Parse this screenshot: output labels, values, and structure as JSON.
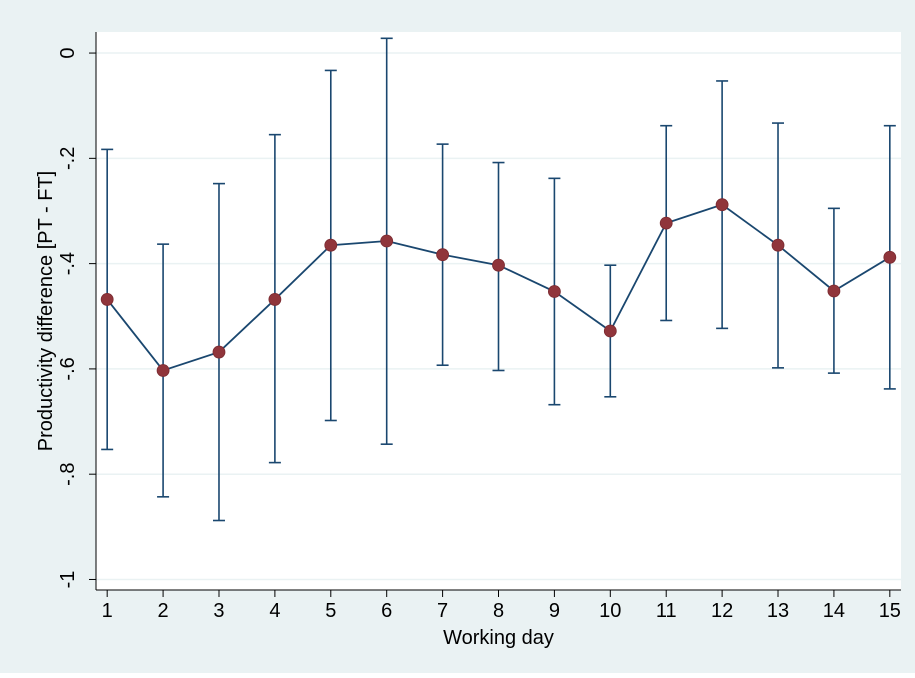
{
  "chart_data": {
    "type": "scatter",
    "xlabel": "Working day",
    "ylabel": "Productivity difference [PT - FT]",
    "xlim": [
      0.8,
      15.2
    ],
    "ylim": [
      -1.02,
      0.04
    ],
    "x_ticks": [
      1,
      2,
      3,
      4,
      5,
      6,
      7,
      8,
      9,
      10,
      11,
      12,
      13,
      14,
      15
    ],
    "y_ticks": [
      0,
      -0.2,
      -0.4,
      -0.6,
      -0.8,
      -1
    ],
    "y_tick_labels": [
      "0",
      "-.2",
      "-.4",
      "-.6",
      "-.8",
      "-1"
    ],
    "grid": true,
    "legend": "none",
    "colors": {
      "outer_background": "#eaf2f3",
      "plot_background": "#ffffff",
      "line": "#1a476f",
      "marker": "#90353b",
      "grid": "#eaf2f3"
    },
    "series": [
      {
        "x": [
          1,
          2,
          3,
          4,
          5,
          6,
          7,
          8,
          9,
          10,
          11,
          12,
          13,
          14,
          15
        ],
        "y": [
          -0.468,
          -0.603,
          -0.568,
          -0.468,
          -0.365,
          -0.357,
          -0.383,
          -0.403,
          -0.453,
          -0.528,
          -0.323,
          -0.288,
          -0.365,
          -0.452,
          -0.388
        ],
        "ci_low": [
          -0.753,
          -0.843,
          -0.888,
          -0.778,
          -0.698,
          -0.743,
          -0.593,
          -0.603,
          -0.668,
          -0.653,
          -0.508,
          -0.523,
          -0.598,
          -0.608,
          -0.638
        ],
        "ci_high": [
          -0.183,
          -0.363,
          -0.248,
          -0.155,
          -0.033,
          0.028,
          -0.173,
          -0.208,
          -0.238,
          -0.403,
          -0.138,
          -0.053,
          -0.133,
          -0.295,
          -0.138
        ]
      }
    ]
  }
}
